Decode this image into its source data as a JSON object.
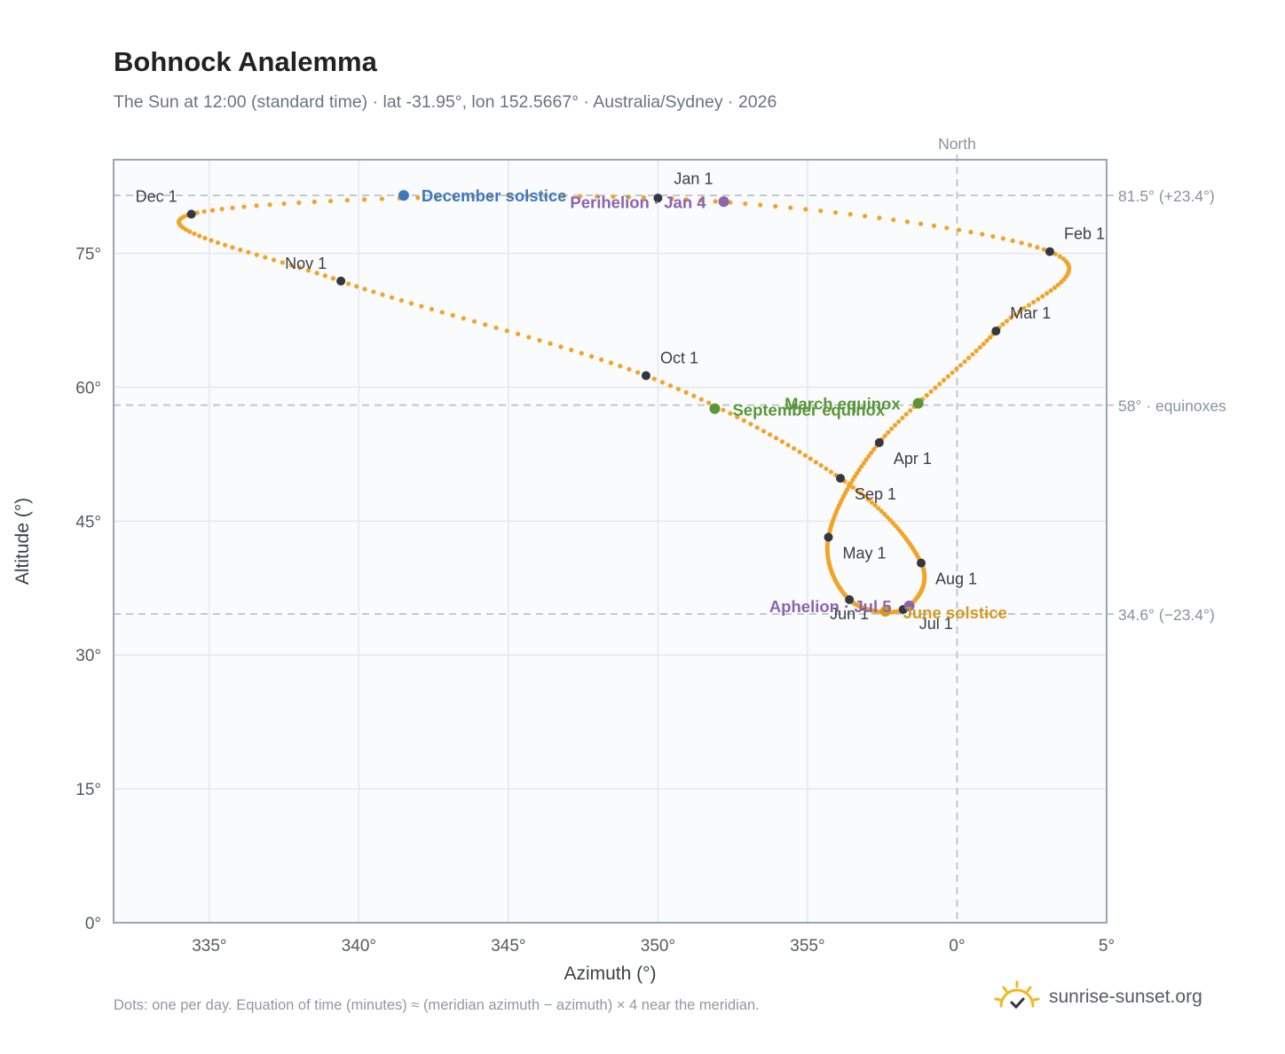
{
  "title": "Bohnock Analemma",
  "subtitle": "The Sun at 12:00 (standard time) · lat -31.95°, lon 152.5667° · Australia/Sydney · 2026",
  "footnote": "Dots: one per day. Equation of time (minutes) ≈ (meridian azimuth − azimuth) × 4 near the meridian.",
  "brand": {
    "name": "sunrise-sunset.org",
    "icon": "sun-logo-icon"
  },
  "colors": {
    "curve": "#f2a427",
    "month_dot": "#333840",
    "solstice_dec": "#3d78c0",
    "solstice_jun": "#d39a1c",
    "equinox": "#5a9637",
    "apsis": "#8b64b0",
    "grid": "#e3e7ed",
    "refline": "#b8c2cf",
    "frame": "#9aa5b4",
    "plot_bg": "#f9fbfd"
  },
  "chart_data": {
    "type": "scatter",
    "xlabel": "Azimuth (°)",
    "ylabel": "Altitude (°)",
    "x_ticks": [
      {
        "value": -25,
        "label": "335°"
      },
      {
        "value": -20,
        "label": "340°"
      },
      {
        "value": -15,
        "label": "345°"
      },
      {
        "value": -10,
        "label": "350°"
      },
      {
        "value": -5,
        "label": "355°"
      },
      {
        "value": 0,
        "label": "0°"
      },
      {
        "value": 5,
        "label": "5°"
      }
    ],
    "y_ticks": [
      {
        "value": 0,
        "label": "0°"
      },
      {
        "value": 15,
        "label": "15°"
      },
      {
        "value": 30,
        "label": "30°"
      },
      {
        "value": 45,
        "label": "45°"
      },
      {
        "value": 60,
        "label": "60°"
      },
      {
        "value": 75,
        "label": "75°"
      }
    ],
    "xlim": [
      -28.2,
      5
    ],
    "ylim": [
      0,
      85.5
    ],
    "grid": true,
    "reference_lines": [
      {
        "axis": "y",
        "value": 81.5,
        "label": "81.5° (+23.4°)"
      },
      {
        "axis": "y",
        "value": 58.0,
        "label": "58° · equinoxes"
      },
      {
        "axis": "y",
        "value": 34.6,
        "label": "34.6° (−23.4°)"
      },
      {
        "axis": "x",
        "value": 0,
        "label": "North"
      }
    ],
    "months": [
      {
        "label": "Jan 1",
        "az": -10.0,
        "alt": 81.2
      },
      {
        "label": "Feb 1",
        "az": 3.1,
        "alt": 75.2
      },
      {
        "label": "Mar 1",
        "az": 1.3,
        "alt": 66.3
      },
      {
        "label": "Apr 1",
        "az": -2.6,
        "alt": 53.8
      },
      {
        "label": "May 1",
        "az": -4.3,
        "alt": 43.2
      },
      {
        "label": "Jun 1",
        "az": -3.6,
        "alt": 36.2
      },
      {
        "label": "Jul 1",
        "az": -1.8,
        "alt": 35.1
      },
      {
        "label": "Aug 1",
        "az": -1.2,
        "alt": 40.3
      },
      {
        "label": "Sep 1",
        "az": -3.9,
        "alt": 49.8
      },
      {
        "label": "Oct 1",
        "az": -10.4,
        "alt": 61.3
      },
      {
        "label": "Nov 1",
        "az": -20.6,
        "alt": 71.9
      },
      {
        "label": "Dec 1",
        "az": -25.6,
        "alt": 79.4
      }
    ],
    "events": [
      {
        "label": "December solstice",
        "az": -18.5,
        "alt": 81.5,
        "kind": "solstice_dec"
      },
      {
        "label": "Perihelion · Jan 4",
        "az": -7.8,
        "alt": 80.8,
        "kind": "apsis"
      },
      {
        "label": "March equinox",
        "az": -1.3,
        "alt": 58.2,
        "kind": "equinox"
      },
      {
        "label": "September equinox",
        "az": -8.1,
        "alt": 57.6,
        "kind": "equinox"
      },
      {
        "label": "Aphelion · Jul 5",
        "az": -1.6,
        "alt": 35.5,
        "kind": "apsis"
      },
      {
        "label": "June solstice",
        "az": -2.4,
        "alt": 34.9,
        "kind": "solstice_jun"
      }
    ]
  }
}
